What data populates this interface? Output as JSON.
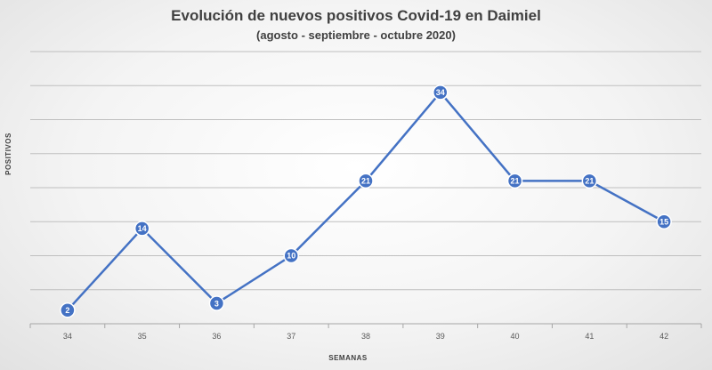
{
  "chart_data": {
    "type": "line",
    "title": "Evolución de nuevos positivos Covid-19 en Daimiel",
    "subtitle": "(agosto - septiembre - octubre 2020)",
    "xlabel": "SEMANAS",
    "ylabel": "POSITIVOS",
    "x": [
      "34",
      "35",
      "36",
      "37",
      "38",
      "39",
      "40",
      "41",
      "42"
    ],
    "series": [
      {
        "values": [
          2,
          14,
          3,
          10,
          21,
          34,
          21,
          21,
          15
        ]
      }
    ],
    "ylim": [
      0,
      40
    ],
    "grid": true,
    "legend": "none",
    "colors": {
      "line": "#4472C4",
      "marker_fill": "#4472C4",
      "marker_stroke": "#ffffff",
      "grid": "#bfbfbf"
    }
  }
}
